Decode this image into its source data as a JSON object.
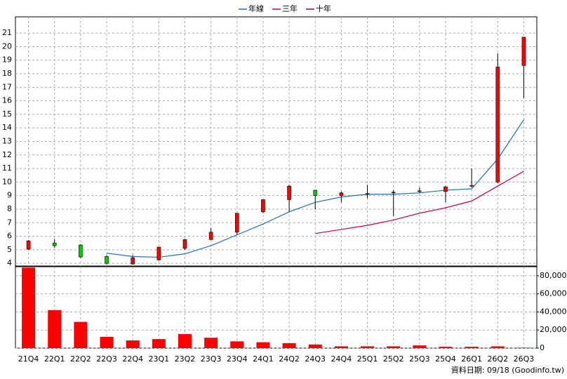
{
  "chart_data": {
    "type": "candlestick",
    "categories": [
      "21Q4",
      "22Q1",
      "22Q2",
      "22Q3",
      "22Q4",
      "23Q1",
      "23Q2",
      "23Q3",
      "23Q4",
      "24Q1",
      "24Q2",
      "24Q3",
      "24Q4",
      "25Q1",
      "25Q2",
      "25Q3",
      "25Q4",
      "26Q1",
      "26Q2",
      "26Q3"
    ],
    "open": [
      5.04,
      5.5,
      5.35,
      4.5,
      3.95,
      4.25,
      5.1,
      5.75,
      6.3,
      7.8,
      8.7,
      9.4,
      9.0,
      9.1,
      9.2,
      9.3,
      9.3,
      9.7,
      10.0,
      18.6
    ],
    "high": [
      5.7,
      5.8,
      5.4,
      4.6,
      4.6,
      5.2,
      5.8,
      6.6,
      7.7,
      8.7,
      9.8,
      9.4,
      9.3,
      9.8,
      9.4,
      9.6,
      9.7,
      11.0,
      19.5,
      20.7
    ],
    "low": [
      5.0,
      5.15,
      4.4,
      3.9,
      3.9,
      4.2,
      5.0,
      5.75,
      6.1,
      7.7,
      7.8,
      8.0,
      8.5,
      8.8,
      7.5,
      9.2,
      8.5,
      9.6,
      9.9,
      16.2
    ],
    "close": [
      5.66,
      5.3,
      4.47,
      4.0,
      4.4,
      5.2,
      5.75,
      6.3,
      7.7,
      8.7,
      9.7,
      9.0,
      9.2,
      9.15,
      9.25,
      9.35,
      9.65,
      9.75,
      18.5,
      20.7
    ],
    "up_color": "#ff0000",
    "down_color": "#00cc00",
    "series": [
      {
        "name": "年線",
        "color": "#1f6fbf",
        "values": [
          null,
          null,
          null,
          4.75,
          4.5,
          4.45,
          4.7,
          5.3,
          6.1,
          6.9,
          7.8,
          8.5,
          8.9,
          9.1,
          9.1,
          9.2,
          9.4,
          9.5,
          11.7,
          14.6
        ]
      },
      {
        "name": "三年",
        "color": "#cc0044",
        "values": [
          null,
          null,
          null,
          null,
          null,
          null,
          null,
          null,
          null,
          null,
          null,
          6.2,
          6.5,
          6.8,
          7.2,
          7.7,
          8.1,
          8.6,
          9.7,
          10.8
        ]
      },
      {
        "name": "十年",
        "color": "#800080",
        "values": [
          null,
          null,
          null,
          null,
          null,
          null,
          null,
          null,
          null,
          null,
          null,
          null,
          null,
          null,
          null,
          null,
          null,
          null,
          null,
          null
        ]
      }
    ],
    "ylim": [
      3.8,
      22.2
    ],
    "yticks": [
      4,
      5,
      6,
      7,
      8,
      9,
      10,
      11,
      12,
      13,
      14,
      15,
      16,
      17,
      18,
      19,
      20,
      21
    ],
    "grid": true,
    "volume": {
      "color": "#ff0000",
      "values": [
        89000,
        42000,
        29000,
        12500,
        8500,
        10000,
        15500,
        11500,
        7500,
        6500,
        5500,
        4000,
        2000,
        2000,
        2000,
        3000,
        1500,
        1500,
        2000,
        500
      ],
      "ylim": [
        0,
        90000
      ],
      "yticks": [
        {
          "value": 0,
          "label": "0"
        },
        {
          "value": 20000,
          "label": "20,000"
        },
        {
          "value": 40000,
          "label": "40,000"
        },
        {
          "value": 60000,
          "label": "60,000"
        },
        {
          "value": 80000,
          "label": "80,000"
        }
      ]
    },
    "footnote": "資料日期: 09/18 (Goodinfo.tw)"
  }
}
